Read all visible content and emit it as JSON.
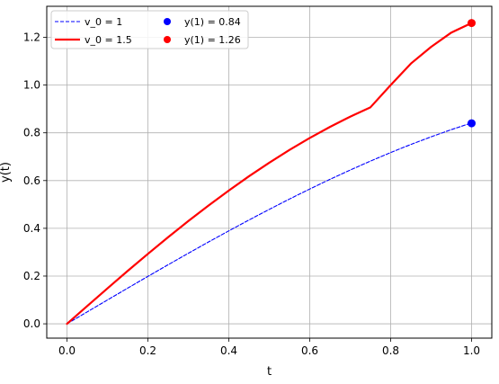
{
  "chart_data": {
    "type": "line",
    "title": "",
    "xlabel": "t",
    "ylabel": "y(t)",
    "xlim": [
      -0.05,
      1.05
    ],
    "ylim": [
      -0.06,
      1.33
    ],
    "xticks": [
      0.0,
      0.2,
      0.4,
      0.6,
      0.8,
      1.0
    ],
    "xtick_labels": [
      "0.0",
      "0.2",
      "0.4",
      "0.6",
      "0.8",
      "1.0"
    ],
    "yticks": [
      0.0,
      0.2,
      0.4,
      0.6,
      0.8,
      1.0,
      1.2
    ],
    "ytick_labels": [
      "0.0",
      "0.2",
      "0.4",
      "0.6",
      "0.8",
      "1.0",
      "1.2"
    ],
    "grid": true,
    "legend_position": "top-left",
    "series": [
      {
        "name": "v_0 = 1",
        "kind": "line",
        "color": "#0000ff",
        "style": "dashed",
        "x": [
          0,
          0.05,
          0.1,
          0.15,
          0.2,
          0.25,
          0.3,
          0.35,
          0.4,
          0.45,
          0.5,
          0.55,
          0.6,
          0.65,
          0.7,
          0.75,
          0.8,
          0.85,
          0.9,
          0.95,
          1.0
        ],
        "y": [
          0,
          0.05,
          0.0998,
          0.1494,
          0.1987,
          0.2474,
          0.2955,
          0.3429,
          0.3894,
          0.435,
          0.4794,
          0.5227,
          0.5646,
          0.6052,
          0.6442,
          0.6816,
          0.7174,
          0.7513,
          0.7833,
          0.8134,
          0.8415
        ]
      },
      {
        "name": "v_0 = 1.5",
        "kind": "line",
        "color": "#ff0000",
        "style": "solid",
        "x": [
          0,
          0.05,
          0.1,
          0.15,
          0.2,
          0.25,
          0.3,
          0.35,
          0.4,
          0.45,
          0.5,
          0.55,
          0.6,
          0.65,
          0.7,
          0.75,
          0.8,
          0.85,
          0.9,
          0.95,
          1.0
        ],
        "y": [
          0,
          0.0745,
          0.1485,
          0.2215,
          0.293,
          0.3628,
          0.4305,
          0.4958,
          0.5584,
          0.6182,
          0.6748,
          0.7283,
          0.7783,
          0.8248,
          0.8677,
          0.9069,
          1.0,
          1.09,
          1.16,
          1.22,
          1.26
        ]
      },
      {
        "name": "y(1) = 0.84",
        "kind": "point",
        "color": "#0000ff",
        "x": [
          1.0
        ],
        "y": [
          0.84
        ]
      },
      {
        "name": "y(1) = 1.26",
        "kind": "point",
        "color": "#ff0000",
        "x": [
          1.0
        ],
        "y": [
          1.26
        ]
      }
    ]
  }
}
